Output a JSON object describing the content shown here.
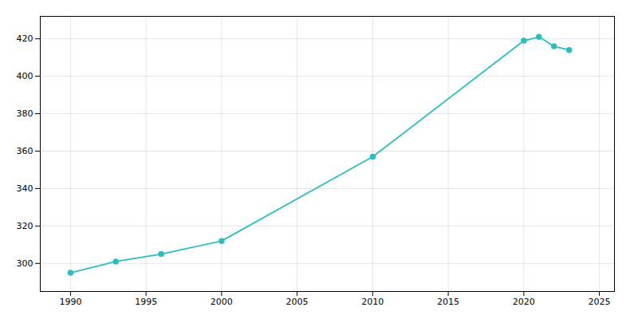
{
  "chart_data": {
    "type": "line",
    "x": [
      1990,
      1993,
      1996,
      2000,
      2010,
      2020,
      2021,
      2022,
      2023
    ],
    "values": [
      295,
      301,
      305,
      312,
      357,
      419,
      421,
      416,
      414
    ],
    "color": "#2abfbf",
    "marker": "circle",
    "xlim": [
      1988,
      2026
    ],
    "ylim": [
      285,
      432
    ],
    "xticks": [
      1990,
      1995,
      2000,
      2005,
      2010,
      2015,
      2020,
      2025
    ],
    "yticks": [
      300,
      320,
      340,
      360,
      380,
      400,
      420
    ],
    "grid": true
  }
}
